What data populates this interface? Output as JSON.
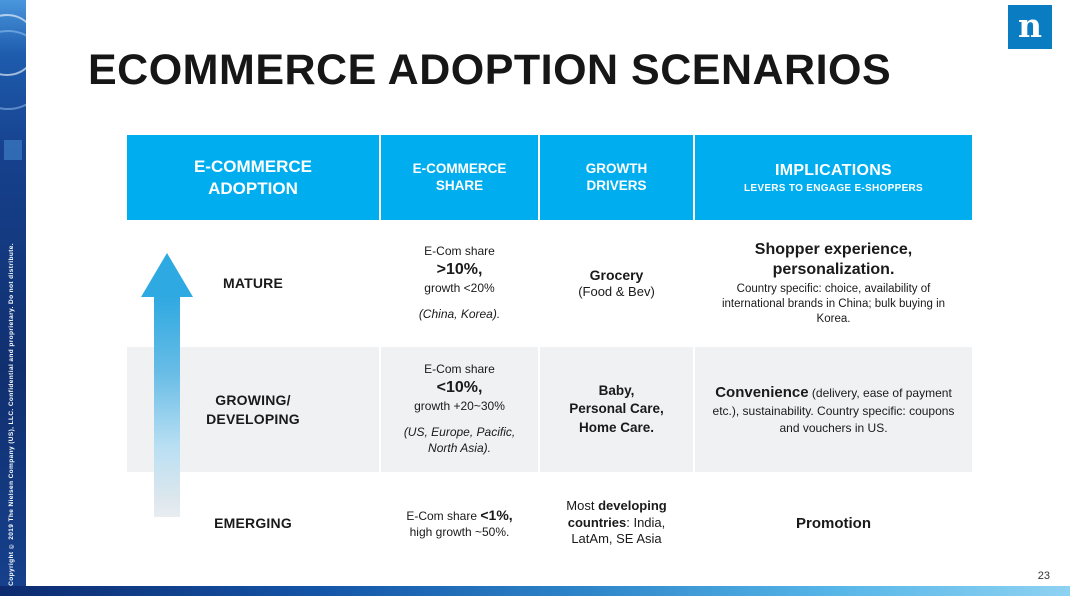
{
  "slide": {
    "title": "ECOMMERCE ADOPTION SCENARIOS",
    "page_number": "23",
    "copyright_vertical": "Copyright © 2019 The Nielsen Company (US), LLC. Confidential and proprietary. Do not distribute.",
    "brand_letter": "n"
  },
  "colors": {
    "header_bg": "#00AEF0",
    "alt_row_bg": "#EFF1F3",
    "arrow_color": "#2FA9E1",
    "logo_bg": "#0A7DC2"
  },
  "table": {
    "header": {
      "col1": "E-COMMERCE ADOPTION",
      "col2": "E-COMMERCE SHARE",
      "col3": "GROWTH DRIVERS",
      "col4_title": "IMPLICATIONS",
      "col4_subtitle": "LEVERS TO ENGAGE E-SHOPPERS"
    },
    "rows": {
      "mature": {
        "label": "MATURE",
        "share_intro": "E-Com share",
        "share_value": ">10%,",
        "share_growth": "growth <20%",
        "share_note": "(China, Korea).",
        "drivers_main": "Grocery",
        "drivers_sub": "(Food & Bev)",
        "impl_title": "Shopper experience, personalization.",
        "impl_detail": "Country specific: choice, availability of international brands in China; bulk buying in Korea."
      },
      "growing": {
        "label_line1": "GROWING/",
        "label_line2": "DEVELOPING",
        "share_intro": "E-Com share",
        "share_value": "<10%,",
        "share_growth": "growth +20~30%",
        "share_note": "(US, Europe, Pacific, North Asia).",
        "drivers_line1": "Baby,",
        "drivers_line2": "Personal Care,",
        "drivers_line3": "Home Care.",
        "impl_title": "Convenience",
        "impl_detail": " (delivery, ease of payment etc.), sustainability. Country specific: coupons and vouchers in US."
      },
      "emerging": {
        "label": "EMERGING",
        "share_intro": "E-Com share ",
        "share_value": "<1%,",
        "share_growth": "high growth ~50%.",
        "drivers_seg1": "Most ",
        "drivers_seg2": "developing countries",
        "drivers_seg3": ": India, LatAm, SE Asia",
        "impl_title": "Promotion"
      }
    }
  }
}
